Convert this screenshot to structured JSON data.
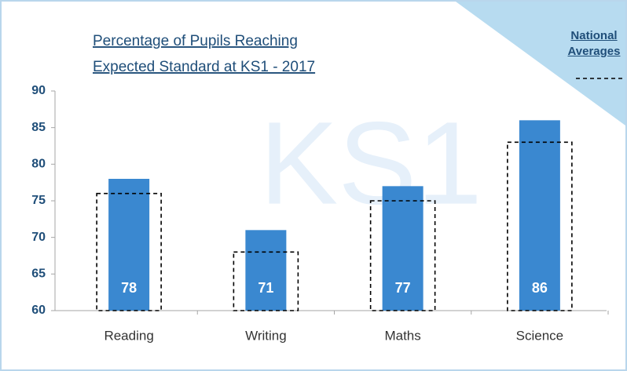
{
  "chart_data": {
    "type": "bar",
    "title": [
      "Percentage of Pupils Reaching",
      "Expected Standard at KS1 - 2017"
    ],
    "watermark": "KS1",
    "categories": [
      "Reading",
      "Writing",
      "Maths",
      "Science"
    ],
    "series": [
      {
        "color": "#3a88d0",
        "values": [
          78,
          71,
          77,
          86
        ]
      },
      {
        "name": "National Averages",
        "style": "dashed-outline",
        "color": "#000000",
        "values": [
          76,
          68,
          75,
          83
        ]
      }
    ],
    "ylim": [
      60,
      90
    ],
    "yticks": [
      60,
      65,
      70,
      75,
      80,
      85,
      90
    ],
    "legend": "top-right"
  }
}
